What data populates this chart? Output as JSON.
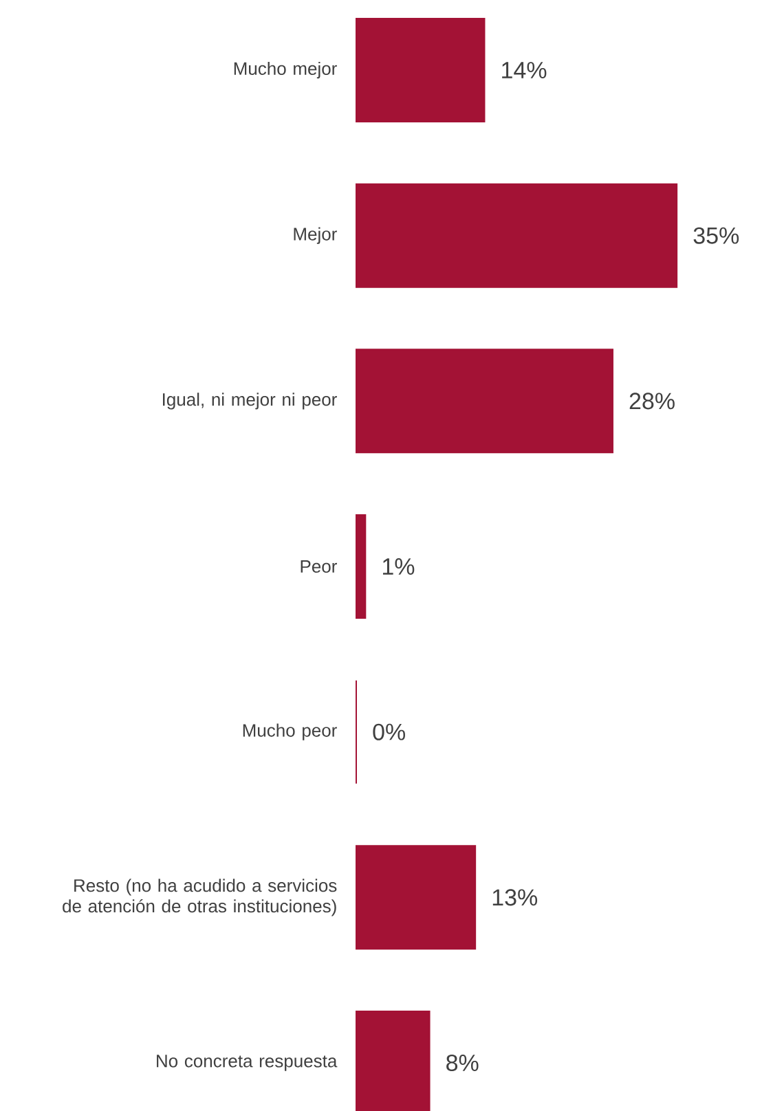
{
  "chart_data": {
    "type": "bar",
    "orientation": "horizontal",
    "categories": [
      "Mucho mejor",
      "Mejor",
      "Igual, ni mejor ni peor",
      "Peor",
      "Mucho peor",
      "Resto (no ha acudido a servicios de atención de otras instituciones)",
      "No concreta respuesta"
    ],
    "values": [
      14,
      35,
      28,
      1,
      0,
      13,
      8
    ],
    "value_labels": [
      "14%",
      "35%",
      "28%",
      "1%",
      "0%",
      "13%",
      "8%"
    ],
    "color": "#a31235"
  }
}
